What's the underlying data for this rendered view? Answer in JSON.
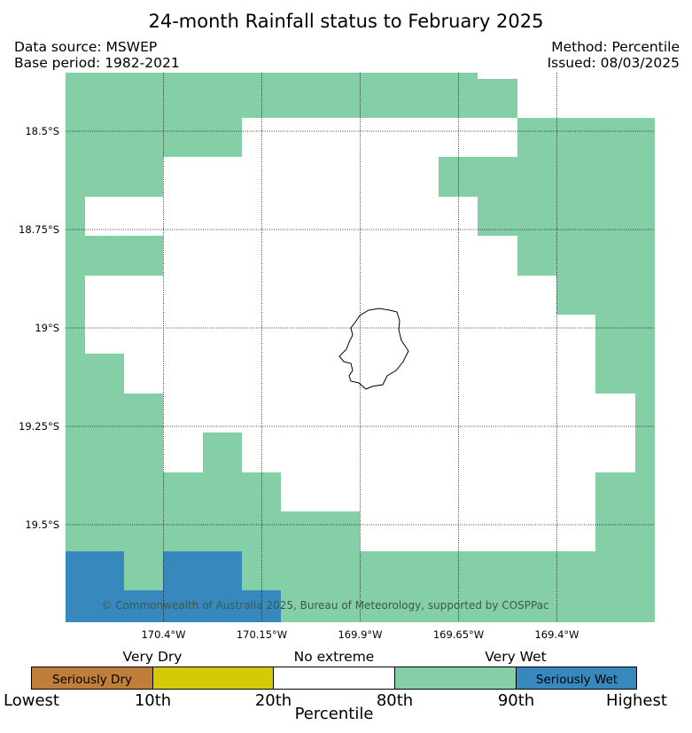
{
  "title": "24-month Rainfall status to February 2025",
  "meta": {
    "data_source": "Data source: MSWEP",
    "base_period": "Base period: 1982-2021",
    "method": "Method: Percentile",
    "issued": "Issued: 08/03/2025"
  },
  "copyright": "© Commonwealth of Australia 2025, Bureau of Meteorology, supported by COSPPac",
  "map": {
    "lat_labels": [
      "18.5°S",
      "18.75°S",
      "19°S",
      "19.25°S",
      "19.5°S"
    ],
    "lon_labels": [
      "170.4°W",
      "170.15°W",
      "169.9°W",
      "169.65°W",
      "169.4°W"
    ],
    "colors": {
      "very_wet": "#85cfa6",
      "seriously_wet": "#3788bd",
      "very_dry": "#d6c906",
      "seriously_dry": "#bf7e3a",
      "no_extreme": "#ffffff"
    }
  },
  "legend": {
    "categories": {
      "very_dry": "Very Dry",
      "no_extreme": "No extreme",
      "very_wet": "Very Wet"
    },
    "boxes": [
      "Seriously Dry",
      "",
      "",
      "",
      "Seriously Wet"
    ],
    "box_colors": [
      "#bf7e3a",
      "#d6c906",
      "#ffffff",
      "#85cfa6",
      "#3788bd"
    ],
    "percentile_labels": [
      "Lowest",
      "10th",
      "20th",
      "80th",
      "90th",
      "Highest"
    ],
    "axis_title": "Percentile"
  }
}
